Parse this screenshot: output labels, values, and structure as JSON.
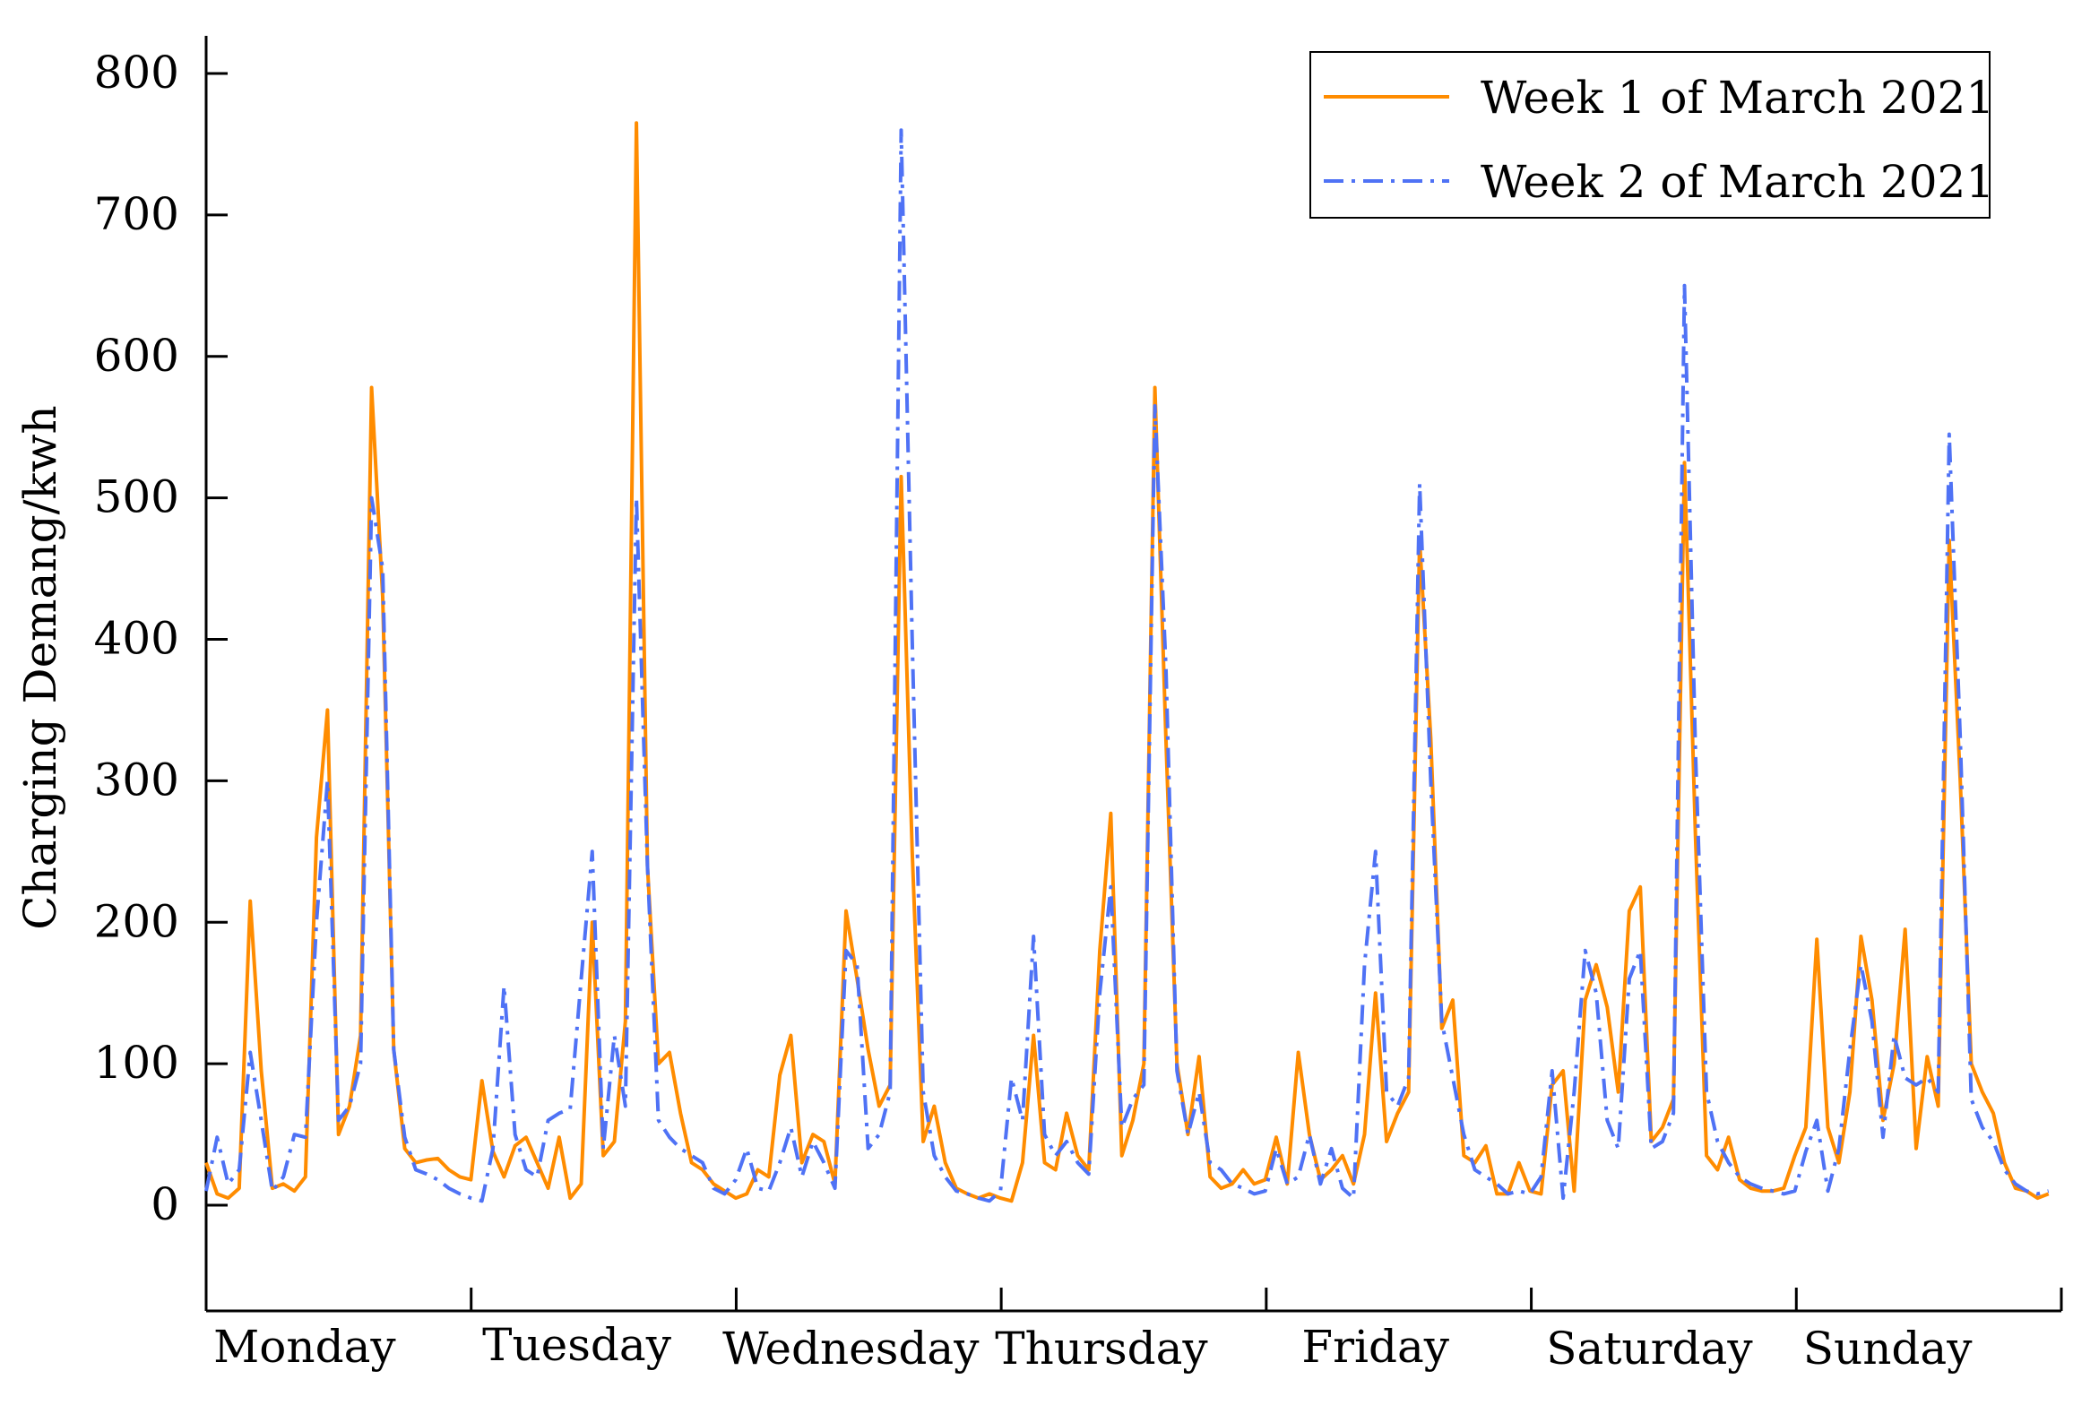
{
  "chart_data": {
    "type": "line",
    "title": "",
    "xlabel": "",
    "ylabel": "Charging Demang/kwh",
    "ylim": [
      -75,
      830
    ],
    "y_ticks": [
      0,
      100,
      200,
      300,
      400,
      500,
      600,
      700,
      800
    ],
    "y_tick_labels": [
      "0",
      "100",
      "200",
      "300",
      "400",
      "500",
      "600",
      "700",
      "800"
    ],
    "day_labels": [
      "Monday",
      "Tuesday",
      "Wednesday",
      "Thursday",
      "Friday",
      "Saturday",
      "Sunday"
    ],
    "x_unit": "hour of week (0-168)",
    "legend_position": "top-right",
    "grid": false,
    "series": [
      {
        "name": "Week 1 of March 2021",
        "color": "#ff8c00",
        "style": "solid",
        "points": [
          [
            0,
            30
          ],
          [
            1,
            8
          ],
          [
            2,
            5
          ],
          [
            3,
            12
          ],
          [
            4,
            215
          ],
          [
            5,
            95
          ],
          [
            6,
            12
          ],
          [
            7,
            15
          ],
          [
            8,
            10
          ],
          [
            9,
            20
          ],
          [
            10,
            260
          ],
          [
            11,
            350
          ],
          [
            12,
            50
          ],
          [
            13,
            70
          ],
          [
            14,
            120
          ],
          [
            15,
            578
          ],
          [
            16,
            430
          ],
          [
            17,
            110
          ],
          [
            18,
            40
          ],
          [
            19,
            30
          ],
          [
            20,
            32
          ],
          [
            21,
            33
          ],
          [
            22,
            25
          ],
          [
            23,
            20
          ],
          [
            24,
            18
          ],
          [
            25,
            88
          ],
          [
            26,
            38
          ],
          [
            27,
            20
          ],
          [
            28,
            42
          ],
          [
            29,
            48
          ],
          [
            30,
            30
          ],
          [
            31,
            12
          ],
          [
            32,
            48
          ],
          [
            33,
            5
          ],
          [
            34,
            15
          ],
          [
            35,
            200
          ],
          [
            36,
            35
          ],
          [
            37,
            45
          ],
          [
            38,
            130
          ],
          [
            39,
            765
          ],
          [
            40,
            240
          ],
          [
            41,
            100
          ],
          [
            42,
            108
          ],
          [
            43,
            65
          ],
          [
            44,
            30
          ],
          [
            45,
            25
          ],
          [
            46,
            15
          ],
          [
            47,
            10
          ],
          [
            48,
            5
          ],
          [
            49,
            8
          ],
          [
            50,
            25
          ],
          [
            51,
            20
          ],
          [
            52,
            92
          ],
          [
            53,
            120
          ],
          [
            54,
            30
          ],
          [
            55,
            50
          ],
          [
            56,
            45
          ],
          [
            57,
            15
          ],
          [
            58,
            208
          ],
          [
            59,
            160
          ],
          [
            60,
            110
          ],
          [
            61,
            70
          ],
          [
            62,
            85
          ],
          [
            63,
            515
          ],
          [
            64,
            250
          ],
          [
            65,
            45
          ],
          [
            66,
            70
          ],
          [
            67,
            30
          ],
          [
            68,
            12
          ],
          [
            69,
            8
          ],
          [
            70,
            5
          ],
          [
            71,
            8
          ],
          [
            72,
            5
          ],
          [
            73,
            3
          ],
          [
            74,
            30
          ],
          [
            75,
            120
          ],
          [
            76,
            30
          ],
          [
            77,
            25
          ],
          [
            78,
            65
          ],
          [
            79,
            35
          ],
          [
            80,
            25
          ],
          [
            81,
            180
          ],
          [
            82,
            277
          ],
          [
            83,
            35
          ],
          [
            84,
            60
          ],
          [
            85,
            100
          ],
          [
            86,
            578
          ],
          [
            87,
            330
          ],
          [
            88,
            100
          ],
          [
            89,
            50
          ],
          [
            90,
            105
          ],
          [
            91,
            20
          ],
          [
            92,
            12
          ],
          [
            93,
            15
          ],
          [
            94,
            25
          ],
          [
            95,
            15
          ],
          [
            96,
            18
          ],
          [
            97,
            48
          ],
          [
            98,
            15
          ],
          [
            99,
            108
          ],
          [
            100,
            50
          ],
          [
            101,
            18
          ],
          [
            102,
            25
          ],
          [
            103,
            35
          ],
          [
            104,
            15
          ],
          [
            105,
            50
          ],
          [
            106,
            150
          ],
          [
            107,
            45
          ],
          [
            108,
            65
          ],
          [
            109,
            80
          ],
          [
            110,
            470
          ],
          [
            111,
            330
          ],
          [
            112,
            125
          ],
          [
            113,
            145
          ],
          [
            114,
            35
          ],
          [
            115,
            30
          ],
          [
            116,
            42
          ],
          [
            117,
            8
          ],
          [
            118,
            8
          ],
          [
            119,
            30
          ],
          [
            120,
            10
          ],
          [
            121,
            8
          ],
          [
            122,
            85
          ],
          [
            123,
            95
          ],
          [
            124,
            10
          ],
          [
            125,
            145
          ],
          [
            126,
            170
          ],
          [
            127,
            140
          ],
          [
            128,
            80
          ],
          [
            129,
            208
          ],
          [
            130,
            225
          ],
          [
            131,
            45
          ],
          [
            132,
            55
          ],
          [
            133,
            75
          ],
          [
            134,
            525
          ],
          [
            135,
            260
          ],
          [
            136,
            35
          ],
          [
            137,
            25
          ],
          [
            138,
            48
          ],
          [
            139,
            18
          ],
          [
            140,
            12
          ],
          [
            141,
            10
          ],
          [
            142,
            10
          ],
          [
            143,
            12
          ],
          [
            144,
            35
          ],
          [
            145,
            55
          ],
          [
            146,
            188
          ],
          [
            147,
            55
          ],
          [
            148,
            30
          ],
          [
            149,
            80
          ],
          [
            150,
            190
          ],
          [
            151,
            145
          ],
          [
            152,
            60
          ],
          [
            153,
            100
          ],
          [
            154,
            195
          ],
          [
            155,
            40
          ],
          [
            156,
            105
          ],
          [
            157,
            70
          ],
          [
            158,
            470
          ],
          [
            159,
            300
          ],
          [
            160,
            100
          ],
          [
            161,
            80
          ],
          [
            162,
            65
          ],
          [
            163,
            30
          ],
          [
            164,
            12
          ],
          [
            165,
            10
          ],
          [
            166,
            5
          ],
          [
            167,
            8
          ]
        ]
      },
      {
        "name": "Week 2 of March 2021",
        "color": "#4f72f5",
        "style": "dashdot",
        "points": [
          [
            0,
            10
          ],
          [
            1,
            48
          ],
          [
            2,
            15
          ],
          [
            3,
            25
          ],
          [
            4,
            108
          ],
          [
            5,
            60
          ],
          [
            6,
            10
          ],
          [
            7,
            20
          ],
          [
            8,
            50
          ],
          [
            9,
            48
          ],
          [
            10,
            200
          ],
          [
            11,
            300
          ],
          [
            12,
            60
          ],
          [
            13,
            70
          ],
          [
            14,
            100
          ],
          [
            15,
            500
          ],
          [
            16,
            450
          ],
          [
            17,
            110
          ],
          [
            18,
            48
          ],
          [
            19,
            25
          ],
          [
            20,
            22
          ],
          [
            21,
            18
          ],
          [
            22,
            12
          ],
          [
            23,
            8
          ],
          [
            24,
            5
          ],
          [
            25,
            3
          ],
          [
            26,
            40
          ],
          [
            27,
            155
          ],
          [
            28,
            50
          ],
          [
            29,
            25
          ],
          [
            30,
            20
          ],
          [
            31,
            60
          ],
          [
            32,
            65
          ],
          [
            33,
            68
          ],
          [
            34,
            160
          ],
          [
            35,
            250
          ],
          [
            36,
            40
          ],
          [
            37,
            120
          ],
          [
            38,
            70
          ],
          [
            39,
            500
          ],
          [
            40,
            240
          ],
          [
            41,
            60
          ],
          [
            42,
            48
          ],
          [
            43,
            40
          ],
          [
            44,
            35
          ],
          [
            45,
            30
          ],
          [
            46,
            12
          ],
          [
            47,
            8
          ],
          [
            48,
            18
          ],
          [
            49,
            40
          ],
          [
            50,
            12
          ],
          [
            51,
            10
          ],
          [
            52,
            30
          ],
          [
            53,
            55
          ],
          [
            54,
            20
          ],
          [
            55,
            45
          ],
          [
            56,
            30
          ],
          [
            57,
            12
          ],
          [
            58,
            180
          ],
          [
            59,
            170
          ],
          [
            60,
            40
          ],
          [
            61,
            50
          ],
          [
            62,
            80
          ],
          [
            63,
            760
          ],
          [
            64,
            400
          ],
          [
            65,
            80
          ],
          [
            66,
            35
          ],
          [
            67,
            20
          ],
          [
            68,
            10
          ],
          [
            69,
            8
          ],
          [
            70,
            5
          ],
          [
            71,
            3
          ],
          [
            72,
            10
          ],
          [
            73,
            90
          ],
          [
            74,
            60
          ],
          [
            75,
            190
          ],
          [
            76,
            50
          ],
          [
            77,
            35
          ],
          [
            78,
            45
          ],
          [
            79,
            30
          ],
          [
            80,
            22
          ],
          [
            81,
            150
          ],
          [
            82,
            225
          ],
          [
            83,
            55
          ],
          [
            84,
            75
          ],
          [
            85,
            85
          ],
          [
            86,
            565
          ],
          [
            87,
            380
          ],
          [
            88,
            95
          ],
          [
            89,
            50
          ],
          [
            90,
            80
          ],
          [
            91,
            30
          ],
          [
            92,
            25
          ],
          [
            93,
            15
          ],
          [
            94,
            12
          ],
          [
            95,
            8
          ],
          [
            96,
            10
          ],
          [
            97,
            40
          ],
          [
            98,
            15
          ],
          [
            99,
            20
          ],
          [
            100,
            50
          ],
          [
            101,
            15
          ],
          [
            102,
            40
          ],
          [
            103,
            12
          ],
          [
            104,
            5
          ],
          [
            105,
            170
          ],
          [
            106,
            250
          ],
          [
            107,
            80
          ],
          [
            108,
            70
          ],
          [
            109,
            90
          ],
          [
            110,
            510
          ],
          [
            111,
            300
          ],
          [
            112,
            130
          ],
          [
            113,
            90
          ],
          [
            114,
            50
          ],
          [
            115,
            25
          ],
          [
            116,
            20
          ],
          [
            117,
            15
          ],
          [
            118,
            8
          ],
          [
            119,
            10
          ],
          [
            120,
            8
          ],
          [
            121,
            20
          ],
          [
            122,
            95
          ],
          [
            123,
            5
          ],
          [
            124,
            80
          ],
          [
            125,
            180
          ],
          [
            126,
            150
          ],
          [
            127,
            60
          ],
          [
            128,
            40
          ],
          [
            129,
            160
          ],
          [
            130,
            180
          ],
          [
            131,
            40
          ],
          [
            132,
            45
          ],
          [
            133,
            65
          ],
          [
            134,
            650
          ],
          [
            135,
            320
          ],
          [
            136,
            80
          ],
          [
            137,
            45
          ],
          [
            138,
            30
          ],
          [
            139,
            20
          ],
          [
            140,
            15
          ],
          [
            141,
            12
          ],
          [
            142,
            10
          ],
          [
            143,
            8
          ],
          [
            144,
            10
          ],
          [
            145,
            38
          ],
          [
            146,
            60
          ],
          [
            147,
            10
          ],
          [
            148,
            40
          ],
          [
            149,
            110
          ],
          [
            150,
            170
          ],
          [
            151,
            130
          ],
          [
            152,
            48
          ],
          [
            153,
            120
          ],
          [
            154,
            90
          ],
          [
            155,
            85
          ],
          [
            156,
            90
          ],
          [
            157,
            80
          ],
          [
            158,
            545
          ],
          [
            159,
            330
          ],
          [
            160,
            75
          ],
          [
            161,
            55
          ],
          [
            162,
            45
          ],
          [
            163,
            25
          ],
          [
            164,
            15
          ],
          [
            165,
            10
          ],
          [
            166,
            8
          ],
          [
            167,
            10
          ]
        ]
      }
    ]
  }
}
